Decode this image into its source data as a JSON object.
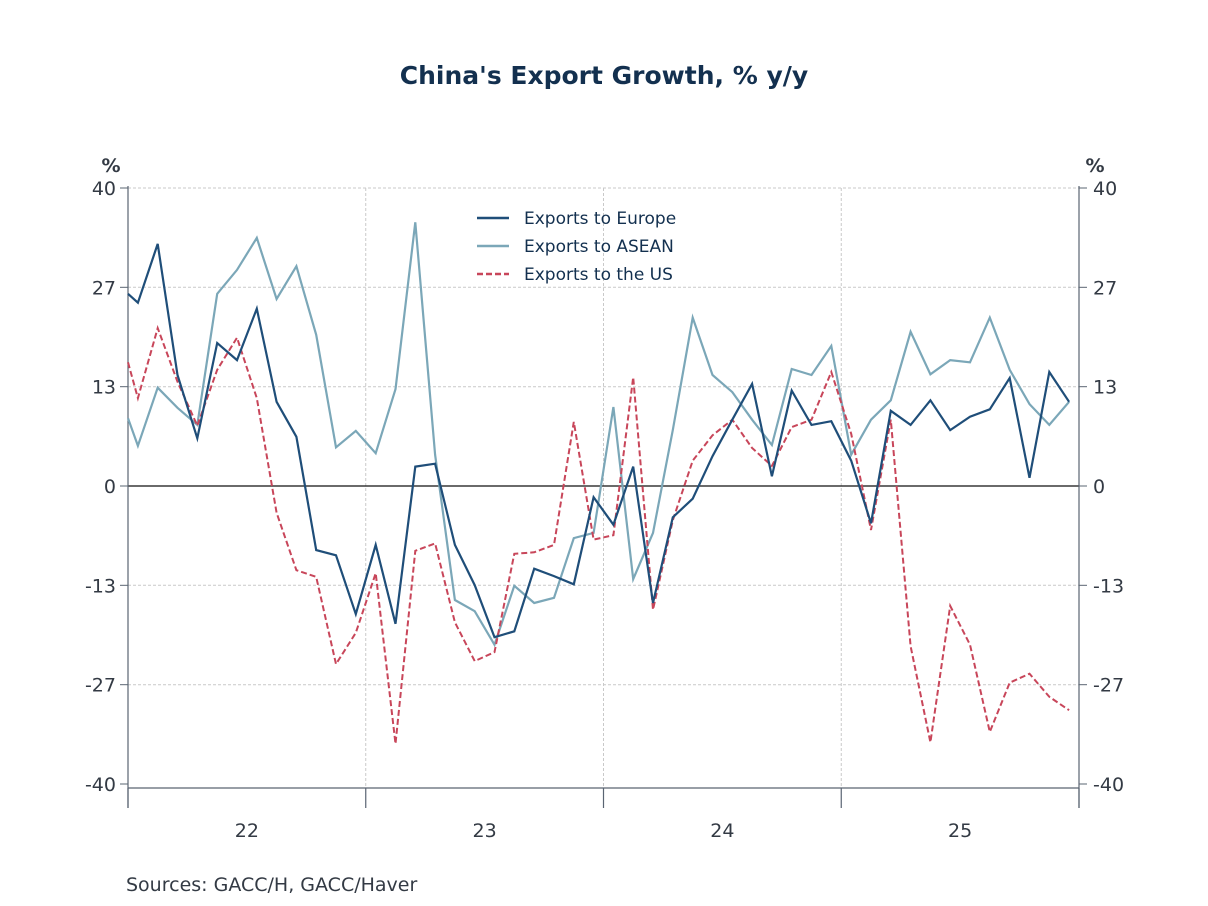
{
  "chart_data": {
    "type": "line",
    "title": "China's Export Growth, % y/y",
    "ylabel_left": "%",
    "ylabel_right": "%",
    "xlabel": "",
    "ylim": [
      -40,
      40
    ],
    "yticks": [
      40,
      27,
      13,
      0,
      -13,
      -27,
      -40
    ],
    "ytick_values": [
      40,
      26.67,
      13.33,
      0,
      -13.33,
      -26.67,
      -40
    ],
    "x_year_ticks": [
      "22",
      "23",
      "24",
      "25"
    ],
    "x_range_months": [
      "Dec-21",
      "Dec-25"
    ],
    "grid": true,
    "legend_position": "top-center",
    "x": [
      "Dec-21",
      "Jan-22",
      "Feb-22",
      "Mar-22",
      "Apr-22",
      "May-22",
      "Jun-22",
      "Jul-22",
      "Aug-22",
      "Sep-22",
      "Oct-22",
      "Nov-22",
      "Dec-22",
      "Jan-23",
      "Feb-23",
      "Mar-23",
      "Apr-23",
      "May-23",
      "Jun-23",
      "Jul-23",
      "Aug-23",
      "Sep-23",
      "Oct-23",
      "Nov-23",
      "Dec-23",
      "Jan-24",
      "Feb-24",
      "Mar-24",
      "Apr-24",
      "May-24",
      "Jun-24",
      "Jul-24",
      "Aug-24",
      "Sep-24",
      "Oct-24",
      "Nov-24",
      "Dec-24",
      "Jan-25",
      "Feb-25",
      "Mar-25",
      "Apr-25",
      "May-25",
      "Jun-25",
      "Jul-25",
      "Aug-25",
      "Sep-25",
      "Oct-25",
      "Nov-25",
      "Dec-25"
    ],
    "series": [
      {
        "name": "Exports to Europe",
        "color": "#1f4e79",
        "style": "solid",
        "values": [
          25.8,
          24.6,
          32.5,
          14.9,
          6.4,
          19.2,
          16.9,
          23.8,
          11.3,
          6.6,
          -8.6,
          -9.3,
          -17.2,
          -7.9,
          -18.5,
          2.6,
          3.0,
          -7.9,
          -13.3,
          -20.3,
          -19.5,
          -11.1,
          -12.1,
          -13.2,
          -1.5,
          -5.2,
          2.6,
          -15.7,
          -4.2,
          -1.7,
          4.0,
          8.9,
          13.7,
          1.3,
          12.8,
          8.2,
          8.7,
          3.4,
          -5.0,
          10.1,
          8.2,
          11.5,
          7.5,
          9.3,
          10.3,
          14.5,
          1.1,
          15.3,
          11.3
        ]
      },
      {
        "name": "Exports to ASEAN",
        "color": "#7ba7b8",
        "style": "solid",
        "values": [
          9.1,
          5.4,
          13.2,
          10.5,
          8.2,
          25.8,
          29.0,
          33.3,
          25.1,
          29.5,
          20.3,
          5.2,
          7.4,
          4.4,
          13.0,
          35.4,
          4.2,
          -15.3,
          -16.8,
          -21.3,
          -13.4,
          -15.7,
          -15.0,
          -7.0,
          -6.3,
          10.6,
          -12.5,
          -6.3,
          7.5,
          22.6,
          14.9,
          12.6,
          8.9,
          5.5,
          15.7,
          14.9,
          18.8,
          4.2,
          8.9,
          11.5,
          20.7,
          15.0,
          16.9,
          16.6,
          22.6,
          15.6,
          11.0,
          8.2,
          11.3
        ]
      },
      {
        "name": "Exports to the US",
        "color": "#c8465a",
        "style": "dashed",
        "values": [
          16.6,
          11.8,
          21.2,
          14.0,
          8.1,
          15.6,
          19.9,
          11.8,
          -3.6,
          -11.3,
          -12.2,
          -23.9,
          -19.7,
          -11.7,
          -34.6,
          -8.7,
          -7.7,
          -18.3,
          -23.5,
          -22.3,
          -9.1,
          -8.9,
          -7.9,
          8.6,
          -7.2,
          -6.6,
          14.6,
          -16.6,
          -4.6,
          3.4,
          6.8,
          8.9,
          5.1,
          2.7,
          7.9,
          8.9,
          15.3,
          7.0,
          -5.9,
          8.9,
          -21.5,
          -34.4,
          -16.1,
          -21.3,
          -33.0,
          -26.4,
          -25.2,
          -28.3,
          -30.1
        ]
      }
    ],
    "source": "Sources:  GACC/H, GACC/Haver"
  }
}
